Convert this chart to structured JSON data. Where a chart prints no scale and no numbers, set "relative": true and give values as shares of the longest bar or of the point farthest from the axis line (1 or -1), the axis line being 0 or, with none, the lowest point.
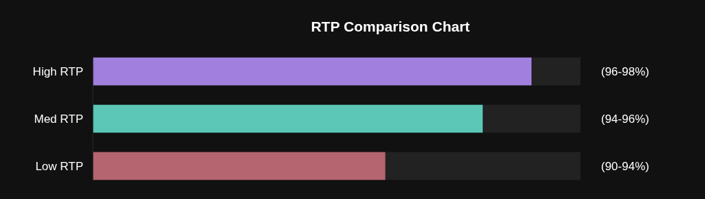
{
  "chart_data": {
    "type": "bar",
    "orientation": "horizontal",
    "stacked": true,
    "relative": true,
    "title": "RTP Comparison Chart",
    "categories": [
      "High RTP",
      "Med RTP",
      "Low RTP"
    ],
    "series": [
      {
        "colors": [
          "#a07fdf",
          "#5cc7b7",
          "#b56570"
        ],
        "values": [
          0.9,
          0.8,
          0.6
        ]
      },
      {
        "color": "#222222",
        "values": [
          0.1,
          0.2,
          0.4
        ]
      }
    ],
    "annotations": [
      "(96-98%)",
      "(94-96%)",
      "(90-94%)"
    ]
  }
}
